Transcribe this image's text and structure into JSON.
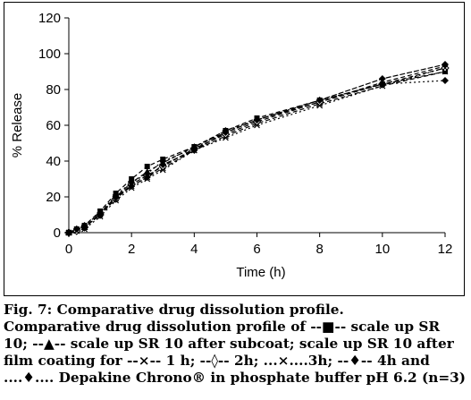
{
  "chart_data": {
    "type": "line",
    "title": "",
    "xlabel": "Time (h)",
    "ylabel": "% Release",
    "xlim": [
      0,
      12
    ],
    "ylim": [
      0,
      120
    ],
    "xticks": [
      0,
      2,
      4,
      6,
      8,
      10,
      12
    ],
    "yticks": [
      0,
      20,
      40,
      60,
      80,
      100,
      120
    ],
    "grid": false,
    "x": [
      0,
      0.25,
      0.5,
      1,
      1.5,
      2,
      2.5,
      3,
      4,
      5,
      6,
      8,
      10,
      12
    ],
    "series": [
      {
        "name": "scale up SR 10",
        "marker": "square",
        "dash": "5,3",
        "color": "#000000",
        "values": [
          0,
          2,
          4,
          12,
          22,
          30,
          37,
          41,
          48,
          57,
          64,
          74,
          83,
          90
        ]
      },
      {
        "name": "scale up SR 10 after subcoat",
        "marker": "triangle",
        "dash": "5,3",
        "color": "#000000",
        "values": [
          0,
          2,
          3,
          11,
          20,
          28,
          34,
          39,
          48,
          56,
          63,
          73,
          84,
          93
        ]
      },
      {
        "name": "1 h",
        "marker": "x",
        "dash": "5,3",
        "color": "#000000",
        "values": [
          0,
          1,
          3,
          10,
          19,
          26,
          31,
          36,
          46,
          54,
          61,
          72,
          82,
          90
        ]
      },
      {
        "name": "2h",
        "marker": "diamond-open",
        "dash": "5,3",
        "color": "#000000",
        "values": [
          0,
          1,
          3,
          10,
          19,
          27,
          32,
          37,
          47,
          55,
          62,
          73,
          83,
          92
        ]
      },
      {
        "name": "3h",
        "marker": "x",
        "dash": "2,3",
        "color": "#000000",
        "values": [
          0,
          1,
          2,
          9,
          18,
          25,
          30,
          35,
          46,
          53,
          60,
          71,
          82,
          92
        ]
      },
      {
        "name": "4h",
        "marker": "diamond",
        "dash": "6,2",
        "color": "#000000",
        "values": [
          0,
          2,
          3,
          10,
          20,
          26,
          31,
          38,
          46,
          56,
          63,
          74,
          86,
          94
        ]
      },
      {
        "name": "Depakine Chrono® in phosphate buffer pH 6.2 (n=3)",
        "marker": "diamond",
        "dash": "2,3",
        "color": "#000000",
        "values": [
          0,
          2,
          4,
          11,
          21,
          28,
          33,
          40,
          47,
          57,
          63,
          74,
          83,
          85
        ]
      }
    ]
  },
  "caption": {
    "title": "Fig. 7: Comparative drug dissolution profile.",
    "text": "Comparative drug dissolution profile of --■-- scale up SR 10; --▲-- scale up SR 10 after subcoat; scale up SR 10 after film coating for --×-- 1 h; --◊-- 2h; ...×....3h; --♦-- 4h and ....♦.... Depakine Chrono® in phosphate buffer pH 6.2 (n=3)"
  }
}
